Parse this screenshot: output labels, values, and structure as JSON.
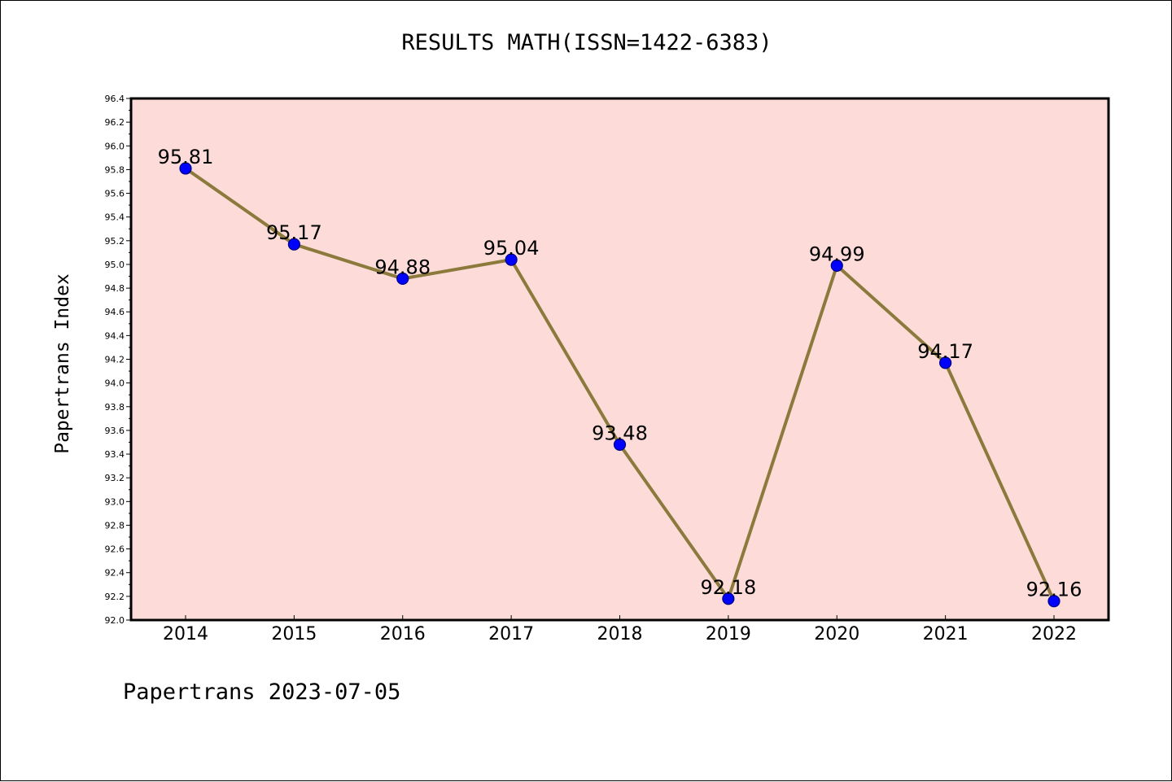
{
  "chart_data": {
    "type": "line",
    "title": "RESULTS MATH(ISSN=1422-6383)",
    "xlabel": "",
    "ylabel": "Papertrans Index",
    "categories": [
      "2014",
      "2015",
      "2016",
      "2017",
      "2018",
      "2019",
      "2020",
      "2021",
      "2022"
    ],
    "series": [
      {
        "values": [
          95.81,
          95.17,
          94.88,
          95.04,
          93.48,
          92.18,
          94.99,
          94.17,
          92.16
        ]
      }
    ],
    "data_labels": [
      "95.81",
      "95.17",
      "94.88",
      "95.04",
      "93.48",
      "92.18",
      "94.99",
      "94.17",
      "92.16"
    ],
    "ylim": [
      92.0,
      96.4
    ],
    "y_ticks": [
      "92.0",
      "92.2",
      "92.4",
      "92.6",
      "92.8",
      "93.0",
      "93.2",
      "93.4",
      "93.6",
      "93.8",
      "94.0",
      "94.2",
      "94.4",
      "94.6",
      "94.8",
      "95.0",
      "95.2",
      "95.4",
      "95.6",
      "95.8",
      "96.0",
      "96.2",
      "96.4"
    ],
    "grid": false,
    "legend": "none",
    "footer": "Papertrans 2023-07-05",
    "colors": {
      "plot_background": "#fddbd9",
      "line": "#8b7a3c",
      "marker_fill": "#0000ff",
      "marker_edge": "#000080",
      "axes": "#000000"
    }
  }
}
